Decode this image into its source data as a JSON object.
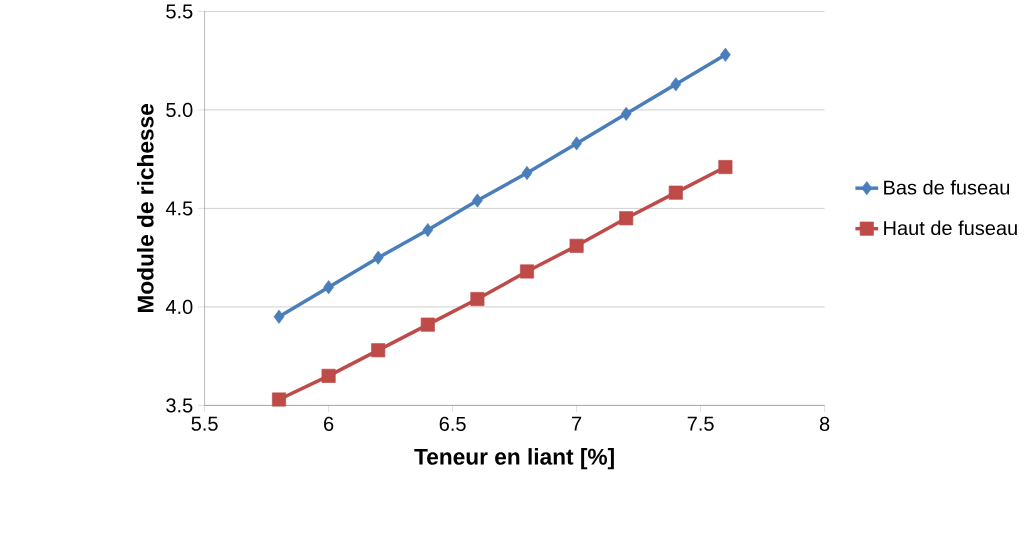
{
  "chart_data": {
    "type": "line",
    "xlabel": "Teneur en liant [%]",
    "ylabel": "Module de richesse",
    "x": [
      5.8,
      6.0,
      6.2,
      6.4,
      6.6,
      6.8,
      7.0,
      7.2,
      7.4,
      7.6
    ],
    "series": [
      {
        "name": "Bas de fuseau",
        "color": "#4a7ebb",
        "marker": "diamond",
        "values": [
          3.95,
          4.1,
          4.25,
          4.39,
          4.54,
          4.68,
          4.83,
          4.98,
          5.13,
          5.28
        ]
      },
      {
        "name": "Haut de fuseau",
        "color": "#be4b48",
        "marker": "square",
        "values": [
          3.53,
          3.65,
          3.78,
          3.91,
          4.04,
          4.18,
          4.31,
          4.45,
          4.58,
          4.71
        ]
      }
    ],
    "xlim": [
      5.5,
      8
    ],
    "ylim": [
      3.5,
      5.5
    ],
    "xticks": [
      5.5,
      6,
      6.5,
      7,
      7.5,
      8
    ],
    "yticks": [
      3.5,
      {
        "value": 4,
        "label": "4.0"
      },
      4.5,
      {
        "value": 5,
        "label": "5.0"
      },
      5.5
    ],
    "grid": "y",
    "legend": "right",
    "line_style": "solid"
  }
}
